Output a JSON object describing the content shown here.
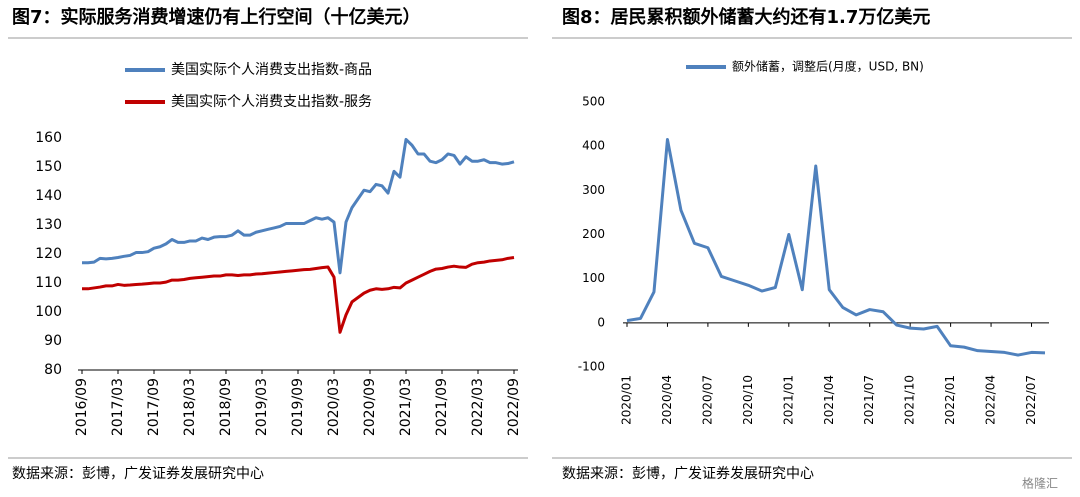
{
  "chart_data": [
    {
      "type": "line",
      "title": "图7：实际服务消费增速仍有上行空间（十亿美元）",
      "source": "数据来源：彭博，广发证券发展研究中心",
      "categories": [
        "2016/09",
        null,
        null,
        null,
        null,
        null,
        "2017/03",
        null,
        null,
        null,
        null,
        null,
        "2017/09",
        null,
        null,
        null,
        null,
        null,
        "2018/03",
        null,
        null,
        null,
        null,
        null,
        "2018/09",
        null,
        null,
        null,
        null,
        null,
        "2019/03",
        null,
        null,
        null,
        null,
        null,
        "2019/09",
        null,
        null,
        null,
        null,
        null,
        "2020/03",
        null,
        null,
        null,
        null,
        null,
        "2020/09",
        null,
        null,
        null,
        null,
        null,
        "2021/03",
        null,
        null,
        null,
        null,
        null,
        "2021/09",
        null,
        null,
        null,
        null,
        null,
        "2022/03",
        null,
        null,
        null,
        null,
        null,
        "2022/09"
      ],
      "series": [
        {
          "name": "美国实际个人消费支出指数-商品",
          "color": "#4f81bd",
          "values": [
            117,
            117,
            117.2,
            118.5,
            118.3,
            118.5,
            118.8,
            119.2,
            119.5,
            120.5,
            120.5,
            120.8,
            122,
            122.5,
            123.5,
            125,
            124,
            124,
            124.5,
            124.5,
            125.5,
            125,
            125.8,
            126,
            126,
            126.5,
            128,
            126.5,
            126.5,
            127.5,
            128,
            128.5,
            129,
            129.5,
            130.5,
            130.5,
            130.5,
            130.5,
            131.5,
            132.5,
            132,
            132.5,
            131,
            113.5,
            131,
            136,
            139,
            142,
            141.5,
            144,
            143.5,
            141,
            148.5,
            146.5,
            159.5,
            157.5,
            154.5,
            154.5,
            152,
            151.5,
            152.5,
            154.5,
            154,
            151,
            153.5,
            152,
            152,
            152.5,
            151.5,
            151.5,
            151,
            151.2,
            151.8
          ]
        },
        {
          "name": "美国实际个人消费支出指数-服务",
          "color": "#c00000",
          "values": [
            108,
            108,
            108.3,
            108.6,
            109,
            109,
            109.5,
            109.2,
            109.3,
            109.5,
            109.6,
            109.8,
            110,
            110,
            110.3,
            111,
            111,
            111.2,
            111.6,
            111.8,
            112,
            112.2,
            112.4,
            112.4,
            112.8,
            112.8,
            112.6,
            112.8,
            112.8,
            113.1,
            113.2,
            113.4,
            113.6,
            113.8,
            114,
            114.2,
            114.4,
            114.6,
            114.7,
            115,
            115.3,
            115.5,
            112,
            93,
            99,
            103.5,
            105,
            106.5,
            107.5,
            108,
            107.8,
            108,
            108.5,
            108.3,
            110,
            111,
            112,
            113,
            114,
            114.8,
            115,
            115.5,
            115.8,
            115.5,
            115.4,
            116.5,
            117,
            117.2,
            117.6,
            117.8,
            118,
            118.5,
            118.8
          ]
        }
      ],
      "ylim": [
        80,
        160
      ],
      "yticks": [
        80,
        90,
        100,
        110,
        120,
        130,
        140,
        150,
        160
      ],
      "grid": false,
      "legend": "top"
    },
    {
      "type": "line",
      "title": "图8：居民累积额外储蓄大约还有1.7万亿美元",
      "source": "数据来源：彭博，广发证券发展研究中心",
      "categories": [
        "2020/01",
        null,
        null,
        "2020/04",
        null,
        null,
        "2020/07",
        null,
        null,
        "2020/10",
        null,
        null,
        "2021/01",
        null,
        null,
        "2021/04",
        null,
        null,
        "2021/07",
        null,
        null,
        "2021/10",
        null,
        null,
        "2022/01",
        null,
        null,
        "2022/04",
        null,
        null,
        "2022/07",
        null
      ],
      "series": [
        {
          "name": "额外储蓄，调整后(月度，USD, BN)",
          "color": "#4f81bd",
          "values": [
            5,
            10,
            70,
            415,
            255,
            180,
            170,
            105,
            95,
            85,
            72,
            80,
            200,
            75,
            355,
            75,
            35,
            18,
            30,
            25,
            -5,
            -12,
            -14,
            -8,
            -52,
            -55,
            -63,
            -65,
            -67,
            -73,
            -67,
            -68
          ]
        }
      ],
      "ylim": [
        -100,
        500
      ],
      "yticks": [
        -100,
        0,
        100,
        200,
        300,
        400,
        500
      ],
      "grid": false,
      "legend": "top"
    }
  ],
  "watermark": "格隆汇"
}
